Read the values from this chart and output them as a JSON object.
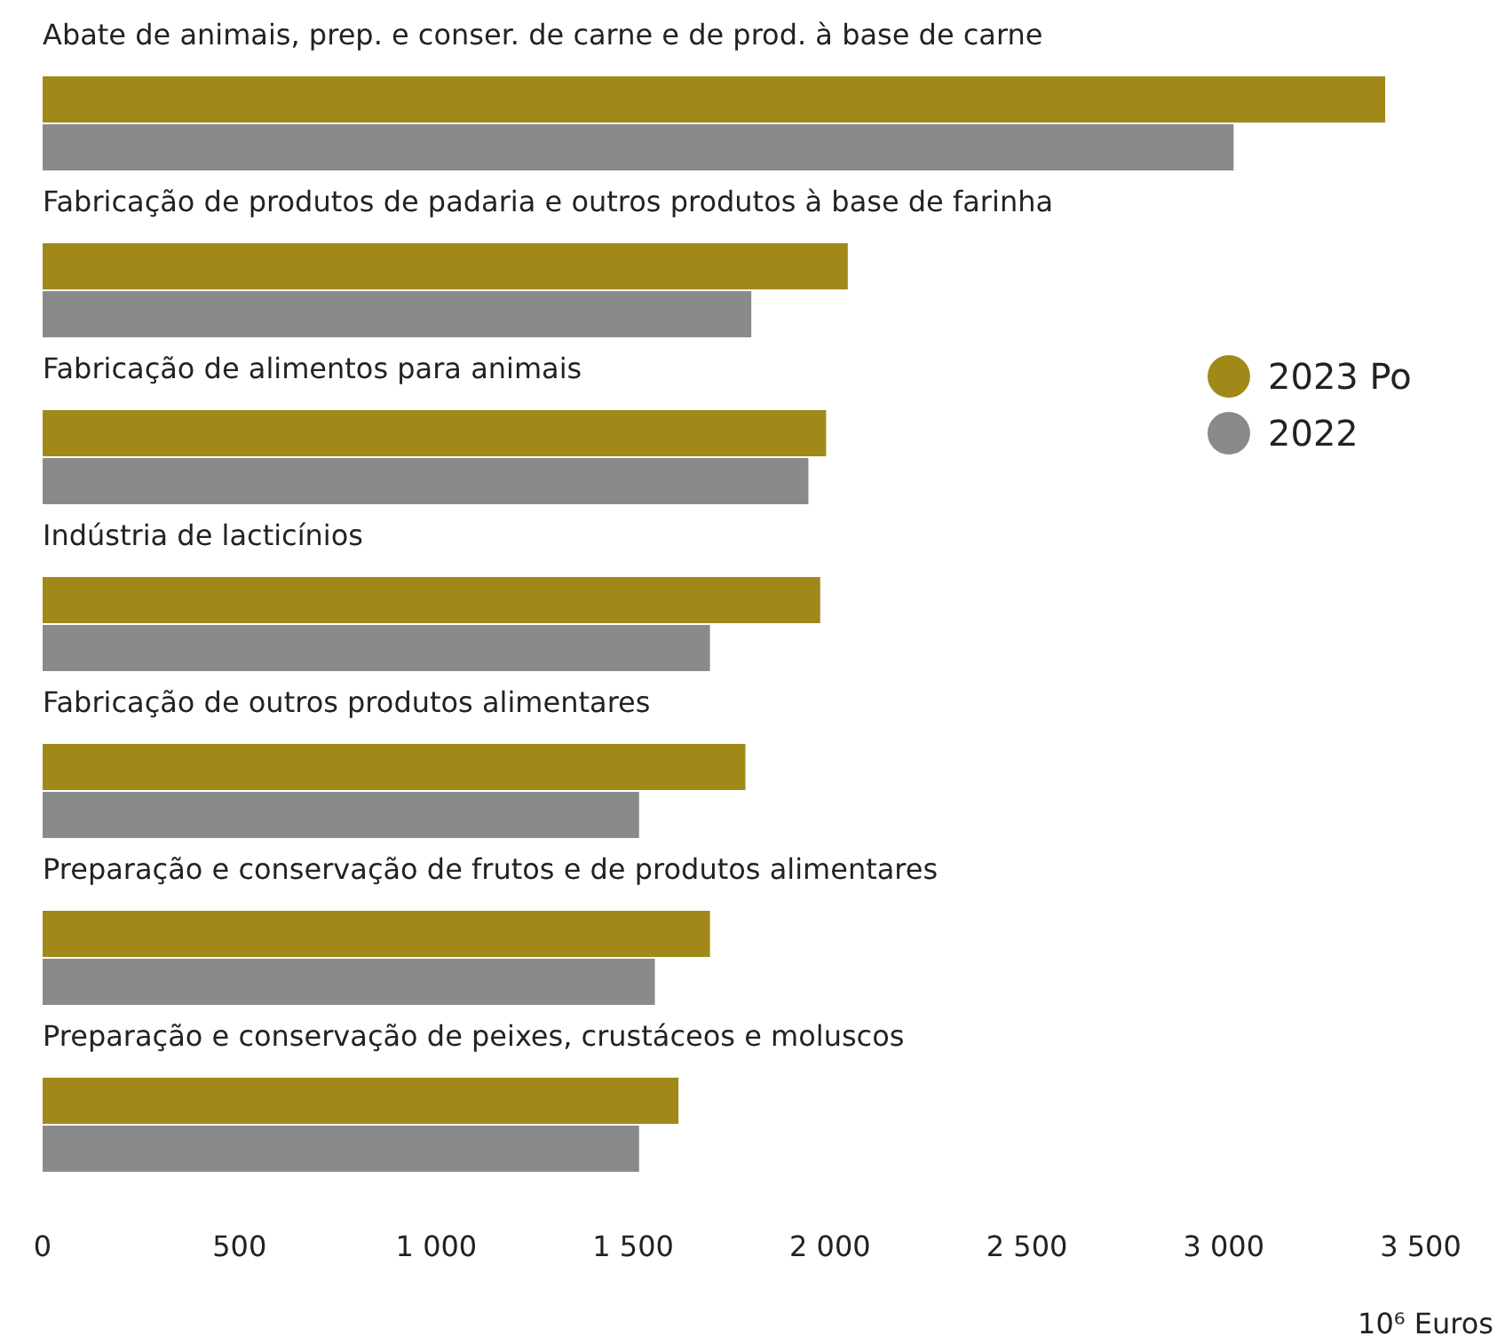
{
  "chart_data": {
    "type": "bar",
    "orientation": "horizontal",
    "categories": [
      "Abate de animais, prep. e conser. de carne e de prod. à base de carne",
      "Fabricação de produtos de padaria e outros produtos à base de farinha",
      "Fabricação de alimentos para animais",
      "Indústria de lacticínios",
      "Fabricação de outros produtos alimentares",
      "Preparação e conservação de frutos e de produtos alimentares",
      "Preparação e conservação de peixes, crustáceos e moluscos"
    ],
    "series": [
      {
        "name": "2023 Po",
        "color": "#a18919",
        "values": [
          3410,
          2045,
          1990,
          1975,
          1785,
          1695,
          1615
        ]
      },
      {
        "name": "2022",
        "color": "#8a8a8a",
        "values": [
          3025,
          1800,
          1945,
          1695,
          1515,
          1555,
          1515
        ]
      }
    ],
    "xlim": [
      0,
      3500
    ],
    "xticks": [
      0,
      500,
      {
        "value": 1000,
        "label": "1 000"
      },
      {
        "value": 1500,
        "label": "1 500"
      },
      {
        "value": 2000,
        "label": "2 000"
      },
      {
        "value": 2500,
        "label": "2 500"
      },
      {
        "value": 3000,
        "label": "3 000"
      },
      {
        "value": 3500,
        "label": "3 500"
      }
    ],
    "xlabel": "10⁶ Euros",
    "legend": "right",
    "grid": false
  }
}
